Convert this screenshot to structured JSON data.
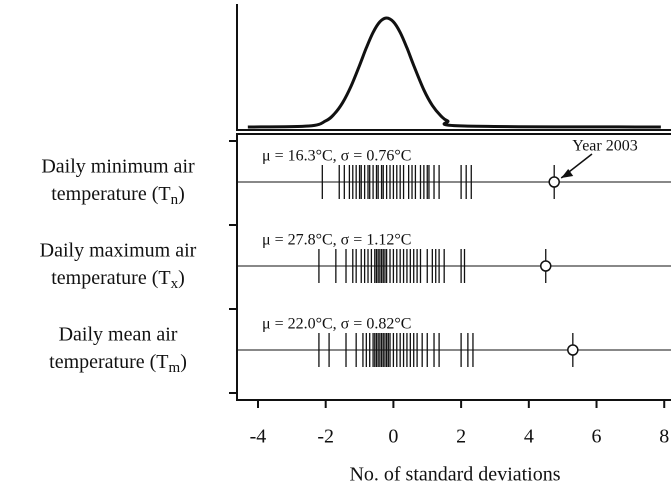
{
  "chart_data": {
    "type": "strip",
    "xlabel": "No. of standard deviations",
    "xlim": [
      -4.62,
      8.2
    ],
    "xticks": [
      -4,
      -2,
      0,
      2,
      4,
      6,
      8
    ],
    "curve": {
      "x": [
        -4.3,
        -2.5,
        -2.0,
        -1.75,
        -1.5,
        -1.25,
        -1.0,
        -0.8,
        -0.6,
        -0.4,
        -0.2,
        0,
        0.2,
        0.4,
        0.6,
        0.9,
        1.15,
        1.4,
        1.6,
        2.1,
        7.9
      ],
      "y": [
        0,
        0.009,
        0.056,
        0.118,
        0.223,
        0.375,
        0.565,
        0.726,
        0.868,
        0.965,
        1,
        0.965,
        0.868,
        0.726,
        0.565,
        0.34,
        0.198,
        0.103,
        0.056,
        0.009,
        0
      ],
      "ylim": [
        0,
        1
      ]
    },
    "annotation": "Year 2003",
    "series": [
      {
        "label": [
          "Daily minimum air",
          "temperature (T"
        ],
        "subscript": "n",
        "label_end": ")",
        "stats": "μ = 16.3°C, σ = 0.76°C",
        "year_2003": 4.75,
        "values": [
          -2.1,
          -1.6,
          -1.45,
          -1.3,
          -1.2,
          -1.1,
          -1.0,
          -0.95,
          -0.85,
          -0.75,
          -0.7,
          -0.6,
          -0.5,
          -0.45,
          -0.35,
          -0.3,
          -0.2,
          -0.1,
          0.0,
          0.1,
          0.2,
          0.3,
          0.45,
          0.55,
          0.65,
          0.8,
          0.9,
          1.0,
          1.05,
          1.2,
          1.35,
          2.0,
          2.15,
          2.3
        ]
      },
      {
        "label": [
          "Daily maximum air",
          "temperature (T"
        ],
        "subscript": "x",
        "label_end": ")",
        "stats": "μ = 27.8°C, σ = 1.12°C",
        "year_2003": 4.5,
        "values": [
          -2.2,
          -1.7,
          -1.4,
          -1.2,
          -1.1,
          -0.95,
          -0.85,
          -0.75,
          -0.65,
          -0.55,
          -0.5,
          -0.45,
          -0.4,
          -0.35,
          -0.3,
          -0.25,
          -0.2,
          -0.1,
          0.0,
          0.1,
          0.2,
          0.3,
          0.4,
          0.5,
          0.6,
          0.7,
          0.8,
          1.0,
          1.15,
          1.25,
          1.35,
          1.5,
          2.0,
          2.1
        ]
      },
      {
        "label": [
          "Daily mean air",
          "temperature (T"
        ],
        "subscript": "m",
        "label_end": ")",
        "stats": "μ = 22.0°C, σ = 0.82°C",
        "year_2003": 5.3,
        "values": [
          -2.2,
          -1.9,
          -1.4,
          -1.1,
          -0.9,
          -0.8,
          -0.7,
          -0.6,
          -0.55,
          -0.5,
          -0.45,
          -0.4,
          -0.35,
          -0.3,
          -0.25,
          -0.2,
          -0.15,
          -0.1,
          0.0,
          0.1,
          0.2,
          0.3,
          0.4,
          0.5,
          0.6,
          0.7,
          0.85,
          1.0,
          1.2,
          1.35,
          2.0,
          2.2,
          2.35
        ]
      }
    ]
  }
}
